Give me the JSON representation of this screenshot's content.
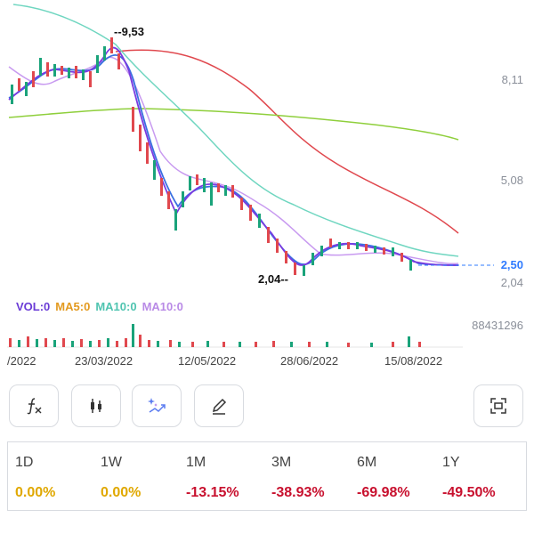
{
  "chart": {
    "price_levels": [
      "8,11",
      "5,08",
      "2,04"
    ],
    "current_price": "2,50",
    "high_annotation": "9,53",
    "low_annotation": "2,04",
    "volume_max": "88431296",
    "dates": [
      "/2022",
      "23/03/2022",
      "12/05/2022",
      "28/06/2022",
      "15/08/2022"
    ],
    "volume_legend": [
      {
        "text": "VOL:0",
        "color": "#6a3bd6"
      },
      {
        "text": "MA5:0",
        "color": "#e39a1f"
      },
      {
        "text": "MA10:0",
        "color": "#4fc4b0"
      },
      {
        "text": "MA10:0",
        "color": "#b98ae6"
      }
    ],
    "colors": {
      "up": "#1aa37a",
      "down": "#e0484e",
      "ma_red": "#e0484e",
      "ma_green": "#8fcf3c",
      "ma_teal": "#6fd6c0",
      "ma_purple": "#c89af0",
      "ma_blue": "#3a6fe0",
      "ma_violet": "#7a3be0"
    }
  },
  "toolbar": {
    "buttons": [
      {
        "name": "indicator-button",
        "icon": "function-icon"
      },
      {
        "name": "candle-type-button",
        "icon": "candlestick-icon"
      },
      {
        "name": "ai-analysis-button",
        "icon": "sparkle-chart-icon"
      },
      {
        "name": "draw-button",
        "icon": "pencil-icon"
      },
      {
        "name": "fullscreen-button",
        "icon": "expand-icon"
      }
    ]
  },
  "performance": [
    {
      "label": "1D",
      "value": "0.00%",
      "color": "#e0a800"
    },
    {
      "label": "1W",
      "value": "0.00%",
      "color": "#e0a800"
    },
    {
      "label": "1M",
      "value": "-13.15%",
      "color": "#c8102e"
    },
    {
      "label": "3M",
      "value": "-38.93%",
      "color": "#c8102e"
    },
    {
      "label": "6M",
      "value": "-69.98%",
      "color": "#c8102e"
    },
    {
      "label": "1Y",
      "value": "-49.50%",
      "color": "#c8102e"
    }
  ]
}
